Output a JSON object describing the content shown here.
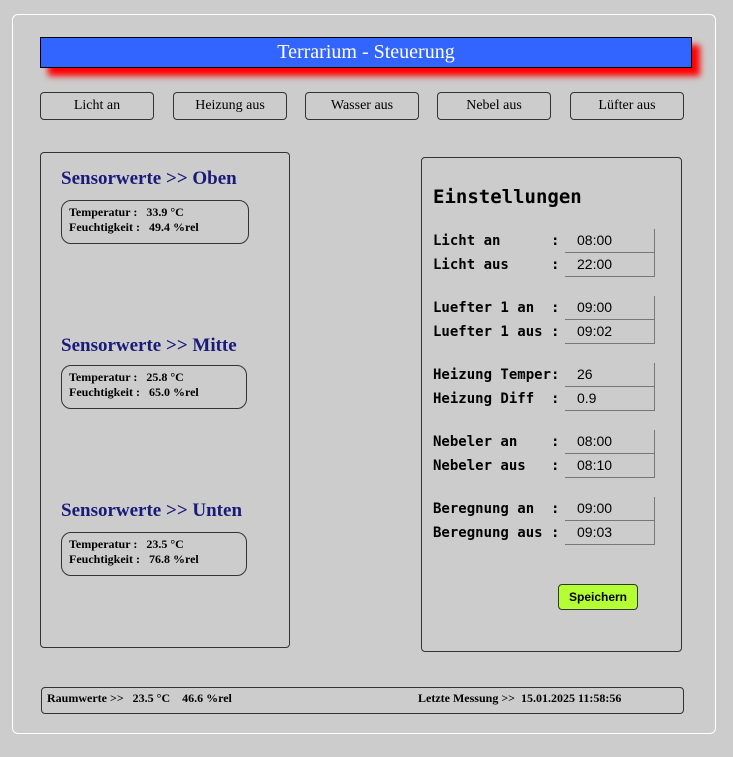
{
  "header": {
    "title": "Terrarium - Steuerung",
    "shadow_color": "#ff0000",
    "bg_color": "#3264ff"
  },
  "buttons": [
    "Licht an",
    "Heizung aus",
    "Wasser aus",
    "Nebel aus",
    "Lüfter aus"
  ],
  "sensors": [
    {
      "title": "Sensorwerte >> Oben",
      "temp_label": "Temperatur :",
      "temp": "33.9 °C",
      "hum_label": "Feuchtigkeit :",
      "hum": "49.4 %rel"
    },
    {
      "title": "Sensorwerte >> Mitte",
      "temp_label": "Temperatur :",
      "temp": "25.8 °C",
      "hum_label": "Feuchtigkeit :",
      "hum": "65.0 %rel"
    },
    {
      "title": "Sensorwerte >> Unten",
      "temp_label": "Temperatur :",
      "temp": "23.5 °C",
      "hum_label": "Feuchtigkeit :",
      "hum": "76.8 %rel"
    }
  ],
  "settings": {
    "title": "Einstellungen",
    "rows": [
      {
        "label": "Licht an      :",
        "value": "08:00"
      },
      {
        "label": "Licht aus     :",
        "value": "22:00"
      },
      {
        "label": "Luefter 1 an  :",
        "value": "09:00"
      },
      {
        "label": "Luefter 1 aus :",
        "value": "09:02"
      },
      {
        "label": "Heizung Temper:",
        "value": "26"
      },
      {
        "label": "Heizung Diff  :",
        "value": "0.9"
      },
      {
        "label": "Nebeler an    :",
        "value": "08:00"
      },
      {
        "label": "Nebeler aus   :",
        "value": "08:10"
      },
      {
        "label": "Beregnung an  :",
        "value": "09:00"
      },
      {
        "label": "Beregnung aus :",
        "value": "09:03"
      }
    ],
    "save_label": "Speichern",
    "save_color": "#b3ff33"
  },
  "footer": {
    "room_label": "Raumwerte >>",
    "room_temp": "23.5 °C",
    "room_hum": "46.6 %rel",
    "last_label": "Letzte Messung >>",
    "last_time": "15.01.2025 11:58:56"
  }
}
